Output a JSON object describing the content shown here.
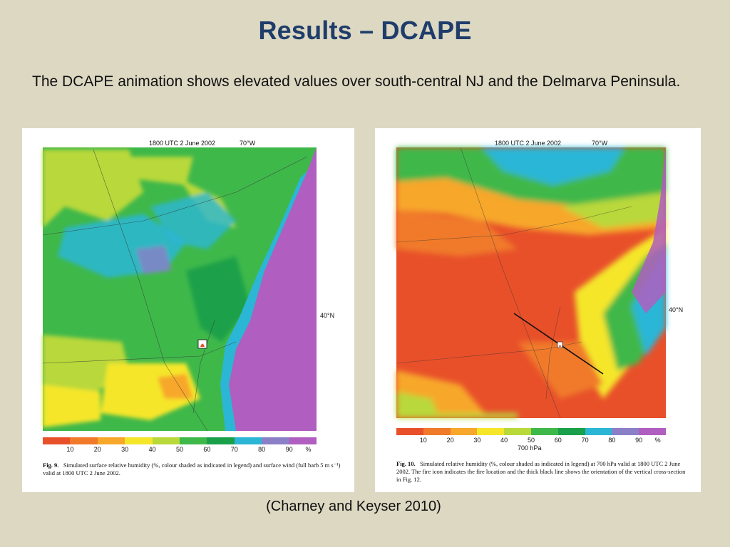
{
  "slide": {
    "title": "Results – DCAPE",
    "body": "The DCAPE animation shows elevated values over south-central NJ and the Delmarva Peninsula.",
    "credit": "(Charney and Keyser 2010)"
  },
  "figures": [
    {
      "header_time": "1800 UTC 2 June 2002",
      "header_lon": "70°W",
      "lat_label": "40°N",
      "legend_ticks": [
        "10",
        "20",
        "30",
        "40",
        "50",
        "60",
        "70",
        "80",
        "90",
        "%"
      ],
      "legend_unit": "",
      "caption_label": "Fig. 9.",
      "caption_text": "Simulated surface relative humidity (%, colour shaded as indicated in legend) and surface wind (full barb 5 m s⁻¹) valid at 1800 UTC 2 June 2002."
    },
    {
      "header_time": "1800 UTC 2 June 2002",
      "header_lon": "70°W",
      "lat_label": "40°N",
      "legend_ticks": [
        "10",
        "20",
        "30",
        "40",
        "50",
        "60",
        "70",
        "80",
        "90",
        "%"
      ],
      "legend_unit": "700 hPa",
      "caption_label": "Fig. 10.",
      "caption_text": "Simulated relative humidity (%, colour shaded as indicated in legend) at 700 hPa valid at 1800 UTC 2 June 2002. The fire icon indicates the fire location and the thick black line shows the orientation of the vertical cross-section in Fig. 12."
    }
  ],
  "legend_colors": [
    "#e8502a",
    "#f07a2a",
    "#f7a72a",
    "#f5e62a",
    "#b9d83a",
    "#3fb84a",
    "#1aa04a",
    "#2bb6d6",
    "#8b7fc8",
    "#b05ec0"
  ]
}
